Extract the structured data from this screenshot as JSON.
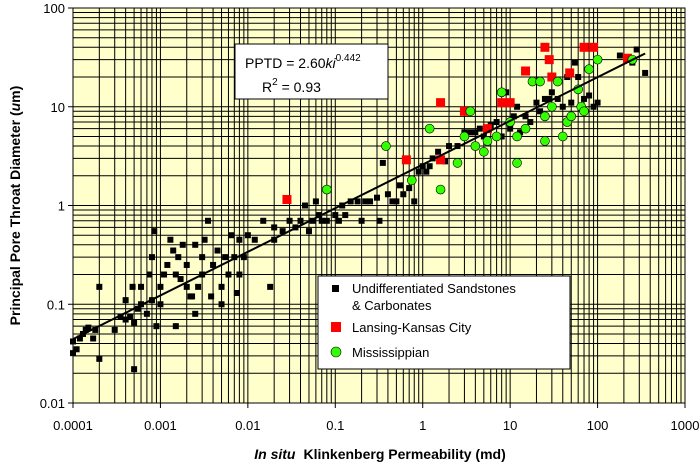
{
  "chart_data": {
    "type": "scatter",
    "xscale": "log",
    "yscale": "log",
    "xlim": [
      0.0001,
      1000
    ],
    "ylim": [
      0.01,
      100
    ],
    "x_ticks": [
      "0.0001",
      "0.001",
      "0.01",
      "0.1",
      "1",
      "10",
      "100",
      "1000"
    ],
    "y_ticks": [
      "0.01",
      "0.1",
      "1",
      "10",
      "100"
    ],
    "xlabel_italic": "In situ",
    "xlabel_rest": "Klinkenberg Permeability (md)",
    "ylabel_pre": "Principal Pore Throat Diameter (",
    "ylabel_unit": "u",
    "ylabel_post": "m)",
    "grid": true,
    "plot_background": "#ffffcc",
    "equation": {
      "lhs": "PPTD = 2.60",
      "ki": "ki",
      "exponent": "0.442",
      "r_label": "R",
      "r_exp": "2",
      "r_value": " = 0.93"
    },
    "fit": {
      "coefficient": 2.6,
      "exponent": 0.442,
      "x_range": [
        0.0001,
        350
      ]
    },
    "legend": {
      "placement": "lower-right",
      "entries": [
        {
          "label_lines": [
            "Undifferentiated Sandstones",
            "& Carbonates"
          ],
          "marker": "square",
          "color": "#000000"
        },
        {
          "label_lines": [
            "Lansing-Kansas City"
          ],
          "marker": "square",
          "color": "#ff0000"
        },
        {
          "label_lines": [
            "Mississippian"
          ],
          "marker": "circle",
          "color": "#33ff00"
        }
      ]
    },
    "series": [
      {
        "name": "Undifferentiated Sandstones & Carbonates",
        "marker": "square",
        "color": "#000000",
        "points": [
          [
            0.0001,
            0.032
          ],
          [
            0.0001,
            0.042
          ],
          [
            0.00011,
            0.035
          ],
          [
            0.00012,
            0.045
          ],
          [
            0.00013,
            0.05
          ],
          [
            0.00014,
            0.055
          ],
          [
            0.00015,
            0.058
          ],
          [
            0.00017,
            0.045
          ],
          [
            0.00018,
            0.055
          ],
          [
            0.0002,
            0.028
          ],
          [
            0.0002,
            0.15
          ],
          [
            0.0003,
            0.055
          ],
          [
            0.00035,
            0.075
          ],
          [
            0.0004,
            0.11
          ],
          [
            0.0004,
            0.07
          ],
          [
            0.00045,
            0.075
          ],
          [
            0.00048,
            0.15
          ],
          [
            0.0005,
            0.065
          ],
          [
            0.0005,
            0.022
          ],
          [
            0.00055,
            0.09
          ],
          [
            0.0006,
            0.15
          ],
          [
            0.0006,
            0.1
          ],
          [
            0.0007,
            0.08
          ],
          [
            0.00075,
            0.2
          ],
          [
            0.0008,
            0.3
          ],
          [
            0.0008,
            0.11
          ],
          [
            0.00085,
            0.55
          ],
          [
            0.0009,
            0.06
          ],
          [
            0.001,
            0.15
          ],
          [
            0.001,
            0.1
          ],
          [
            0.0011,
            0.2
          ],
          [
            0.0012,
            0.25
          ],
          [
            0.0013,
            0.45
          ],
          [
            0.0014,
            0.35
          ],
          [
            0.0015,
            0.06
          ],
          [
            0.0015,
            0.2
          ],
          [
            0.0016,
            0.3
          ],
          [
            0.0017,
            0.18
          ],
          [
            0.0018,
            0.4
          ],
          [
            0.002,
            0.15
          ],
          [
            0.002,
            0.25
          ],
          [
            0.0022,
            0.12
          ],
          [
            0.0023,
            0.12
          ],
          [
            0.0025,
            0.4
          ],
          [
            0.0025,
            0.08
          ],
          [
            0.0027,
            0.15
          ],
          [
            0.003,
            0.3
          ],
          [
            0.003,
            0.2
          ],
          [
            0.0032,
            0.45
          ],
          [
            0.0035,
            0.7
          ],
          [
            0.0038,
            0.12
          ],
          [
            0.004,
            0.25
          ],
          [
            0.0045,
            0.35
          ],
          [
            0.005,
            0.15
          ],
          [
            0.005,
            0.1
          ],
          [
            0.0055,
            0.3
          ],
          [
            0.006,
            0.2
          ],
          [
            0.0065,
            0.5
          ],
          [
            0.007,
            0.3
          ],
          [
            0.0075,
            0.13
          ],
          [
            0.008,
            0.2
          ],
          [
            0.008,
            0.45
          ],
          [
            0.009,
            0.3
          ],
          [
            0.01,
            0.5
          ],
          [
            0.012,
            0.45
          ],
          [
            0.015,
            0.7
          ],
          [
            0.018,
            0.15
          ],
          [
            0.02,
            0.45
          ],
          [
            0.02,
            0.6
          ],
          [
            0.025,
            0.55
          ],
          [
            0.03,
            0.7
          ],
          [
            0.035,
            0.6
          ],
          [
            0.04,
            0.7
          ],
          [
            0.045,
            1.0
          ],
          [
            0.05,
            0.55
          ],
          [
            0.055,
            0.7
          ],
          [
            0.06,
            1.1
          ],
          [
            0.065,
            0.8
          ],
          [
            0.07,
            0.7
          ],
          [
            0.08,
            0.7
          ],
          [
            0.1,
            0.8
          ],
          [
            0.11,
            0.7
          ],
          [
            0.12,
            1.0
          ],
          [
            0.13,
            0.8
          ],
          [
            0.15,
            1.1
          ],
          [
            0.18,
            1.1
          ],
          [
            0.2,
            0.7
          ],
          [
            0.22,
            1.1
          ],
          [
            0.25,
            1.1
          ],
          [
            0.3,
            1.2
          ],
          [
            0.32,
            0.7
          ],
          [
            0.35,
            2.7
          ],
          [
            0.4,
            1.3
          ],
          [
            0.45,
            1.1
          ],
          [
            0.5,
            1.1
          ],
          [
            0.55,
            1.6
          ],
          [
            0.6,
            1.3
          ],
          [
            0.7,
            1.5
          ],
          [
            0.8,
            1.1
          ],
          [
            0.9,
            2.2
          ],
          [
            1.0,
            2.5
          ],
          [
            1.1,
            2.2
          ],
          [
            1.2,
            2.5
          ],
          [
            1.3,
            3.0
          ],
          [
            1.5,
            3.5
          ],
          [
            1.8,
            2.8
          ],
          [
            2.0,
            4.0
          ],
          [
            2.5,
            4.0
          ],
          [
            3.0,
            5.5
          ],
          [
            3.5,
            5.5
          ],
          [
            4.0,
            5.5
          ],
          [
            4.5,
            6.0
          ],
          [
            5.0,
            5.0
          ],
          [
            6.0,
            6.5
          ],
          [
            7.0,
            7.0
          ],
          [
            8.0,
            5.0
          ],
          [
            9.0,
            14.0
          ],
          [
            10,
            6.0
          ],
          [
            11,
            8.0
          ],
          [
            12,
            10.0
          ],
          [
            13,
            5.5
          ],
          [
            15,
            8.0
          ],
          [
            17,
            7.0
          ],
          [
            20,
            11.0
          ],
          [
            22,
            9.0
          ],
          [
            25,
            12.0
          ],
          [
            28,
            12.0
          ],
          [
            30,
            14.0
          ],
          [
            35,
            12.0
          ],
          [
            40,
            10.0
          ],
          [
            45,
            20.0
          ],
          [
            50,
            11.0
          ],
          [
            55,
            28.0
          ],
          [
            60,
            20.0
          ],
          [
            70,
            12.0
          ],
          [
            80,
            13.0
          ],
          [
            90,
            10.0
          ],
          [
            100,
            11.0
          ],
          [
            180,
            33.0
          ],
          [
            250,
            28.0
          ],
          [
            280,
            38.0
          ],
          [
            350,
            22.0
          ]
        ]
      },
      {
        "name": "Lansing-Kansas City",
        "marker": "square",
        "color": "#ff0000",
        "points": [
          [
            0.028,
            1.15
          ],
          [
            0.65,
            2.9
          ],
          [
            1.6,
            2.9
          ],
          [
            1.6,
            11.0
          ],
          [
            3.0,
            9.0
          ],
          [
            5.5,
            6.0
          ],
          [
            8.0,
            11.0
          ],
          [
            10,
            11.0
          ],
          [
            15,
            23.0
          ],
          [
            25,
            40.0
          ],
          [
            28,
            30.0
          ],
          [
            30,
            20.0
          ],
          [
            48,
            22.0
          ],
          [
            70,
            40.0
          ],
          [
            90,
            40.0
          ],
          [
            220,
            31.0
          ]
        ]
      },
      {
        "name": "Mississippian",
        "marker": "circle",
        "color": "#33ff00",
        "points": [
          [
            0.08,
            1.45
          ],
          [
            0.38,
            4.0
          ],
          [
            0.75,
            1.8
          ],
          [
            1.2,
            6.0
          ],
          [
            1.6,
            1.45
          ],
          [
            2.5,
            2.7
          ],
          [
            3.0,
            5.0
          ],
          [
            3.5,
            9.0
          ],
          [
            4.0,
            4.0
          ],
          [
            5.0,
            3.5
          ],
          [
            5.5,
            4.5
          ],
          [
            7.0,
            5.0
          ],
          [
            8.0,
            14.0
          ],
          [
            10,
            7.0
          ],
          [
            12,
            5.0
          ],
          [
            12,
            2.7
          ],
          [
            15,
            6.0
          ],
          [
            18,
            18.0
          ],
          [
            22,
            18.0
          ],
          [
            25,
            4.5
          ],
          [
            25,
            8.0
          ],
          [
            30,
            10.0
          ],
          [
            35,
            18.0
          ],
          [
            40,
            5.0
          ],
          [
            45,
            7.0
          ],
          [
            50,
            8.0
          ],
          [
            60,
            15.0
          ],
          [
            65,
            10.0
          ],
          [
            70,
            9.0
          ],
          [
            80,
            24.0
          ],
          [
            100,
            30.0
          ],
          [
            250,
            30.0
          ]
        ]
      }
    ]
  }
}
